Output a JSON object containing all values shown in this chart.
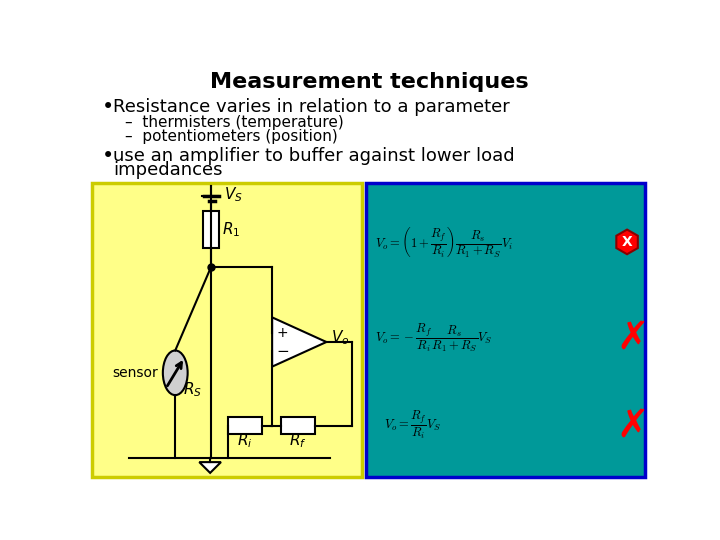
{
  "title": "Measurement techniques",
  "bullet1": "Resistance varies in relation to a parameter",
  "sub1": "thermisters (temperature)",
  "sub2": "potentiometers (position)",
  "bullet2_line1": "use an amplifier to buffer against lower load",
  "bullet2_line2": "impedances",
  "bg_color": "#ffffff",
  "yellow_box_color": "#ffff88",
  "yellow_edge_color": "#cccc00",
  "teal_box_color": "#009999",
  "teal_edge_color": "#0000cc",
  "title_fontsize": 16,
  "body_fontsize": 13,
  "sub_fontsize": 11,
  "eq_fontsize": 9,
  "circ_fontsize": 11
}
